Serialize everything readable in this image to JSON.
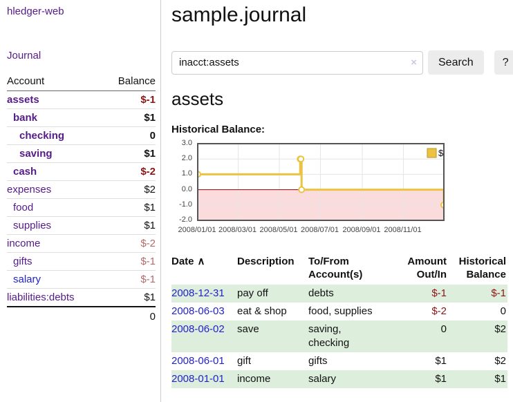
{
  "colors": {
    "link_purple": "#551a8b",
    "link_blue": "#2222cc",
    "negative_strong": "#8c1414",
    "negative_soft": "#b46a6a",
    "row_green": "#ddeedd",
    "accent_gold": "#edc240"
  },
  "sidebar": {
    "app_title": "hledger-web",
    "nav": {
      "journal": "Journal"
    },
    "table": {
      "headers": {
        "account": "Account",
        "balance": "Balance"
      },
      "rows": [
        {
          "name": "assets",
          "balance": "$-1",
          "indent": 0,
          "bold": true
        },
        {
          "name": "bank",
          "balance": "$1",
          "indent": 1,
          "bold": true
        },
        {
          "name": "checking",
          "balance": "0",
          "indent": 2,
          "bold": true
        },
        {
          "name": "saving",
          "balance": "$1",
          "indent": 2,
          "bold": true
        },
        {
          "name": "cash",
          "balance": "$-2",
          "indent": 1,
          "bold": true
        },
        {
          "name": "expenses",
          "balance": "$2",
          "indent": 0,
          "bold": false
        },
        {
          "name": "food",
          "balance": "$1",
          "indent": 1,
          "bold": false
        },
        {
          "name": "supplies",
          "balance": "$1",
          "indent": 1,
          "bold": false
        },
        {
          "name": "income",
          "balance": "$-2",
          "indent": 0,
          "bold": false
        },
        {
          "name": "gifts",
          "balance": "$-1",
          "indent": 1,
          "bold": false
        },
        {
          "name": "salary",
          "balance": "$-1",
          "indent": 1,
          "bold": false,
          "highlight": true
        },
        {
          "name": "liabilities:debts",
          "balance": "$1",
          "indent": 0,
          "bold": false
        }
      ],
      "total": "0"
    }
  },
  "header": {
    "title": "sample.journal"
  },
  "search": {
    "value": "inacct:assets",
    "clear_label": "×",
    "button_label": "Search",
    "help_label": "?"
  },
  "account_view": {
    "title": "assets",
    "chart_title": "Historical Balance:"
  },
  "chart_data": {
    "type": "line",
    "step": true,
    "title": "Historical Balance",
    "x_range": [
      "2008-01-01",
      "2008-12-31"
    ],
    "ylim": [
      -2,
      3
    ],
    "y_ticks": [
      "3.0",
      "2.0",
      "1.0",
      "0.0",
      "-1.0",
      "-2.0"
    ],
    "x_ticks": [
      "2008/01/01",
      "2008/03/01",
      "2008/05/01",
      "2008/07/01",
      "2008/09/01",
      "2008/11/01"
    ],
    "series": [
      {
        "name": "$",
        "color": "#edc240",
        "points": [
          {
            "date": "2008-01-01",
            "value": 1
          },
          {
            "date": "2008-06-01",
            "value": 2
          },
          {
            "date": "2008-06-02",
            "value": 2
          },
          {
            "date": "2008-06-03",
            "value": 0
          },
          {
            "date": "2008-12-31",
            "value": -1
          }
        ]
      }
    ],
    "legend": {
      "label": "$",
      "position": "top-right"
    },
    "grid": true,
    "zero_line_color": "#8b0000",
    "negative_area_color": "#fbdcdc",
    "border_color": "#545454",
    "gridline_color": "#e6e6e6"
  },
  "register": {
    "headers": {
      "date": "Date",
      "sort_indicator": "∧",
      "description": "Description",
      "account": [
        "To/From",
        "Account(s)"
      ],
      "amount": [
        "Amount",
        "Out/In"
      ],
      "balance": [
        "Historical",
        "Balance"
      ]
    },
    "rows": [
      {
        "date": "2008-12-31",
        "description": "pay off",
        "accounts": "debts",
        "amount": "$-1",
        "balance": "$-1"
      },
      {
        "date": "2008-06-03",
        "description": "eat & shop",
        "accounts": "food, supplies",
        "amount": "$-2",
        "balance": "0"
      },
      {
        "date": "2008-06-02",
        "description": "save",
        "accounts": "saving, checking",
        "amount": "0",
        "balance": "$2"
      },
      {
        "date": "2008-06-01",
        "description": "gift",
        "accounts": "gifts",
        "amount": "$1",
        "balance": "$2"
      },
      {
        "date": "2008-01-01",
        "description": "income",
        "accounts": "salary",
        "amount": "$1",
        "balance": "$1"
      }
    ]
  }
}
